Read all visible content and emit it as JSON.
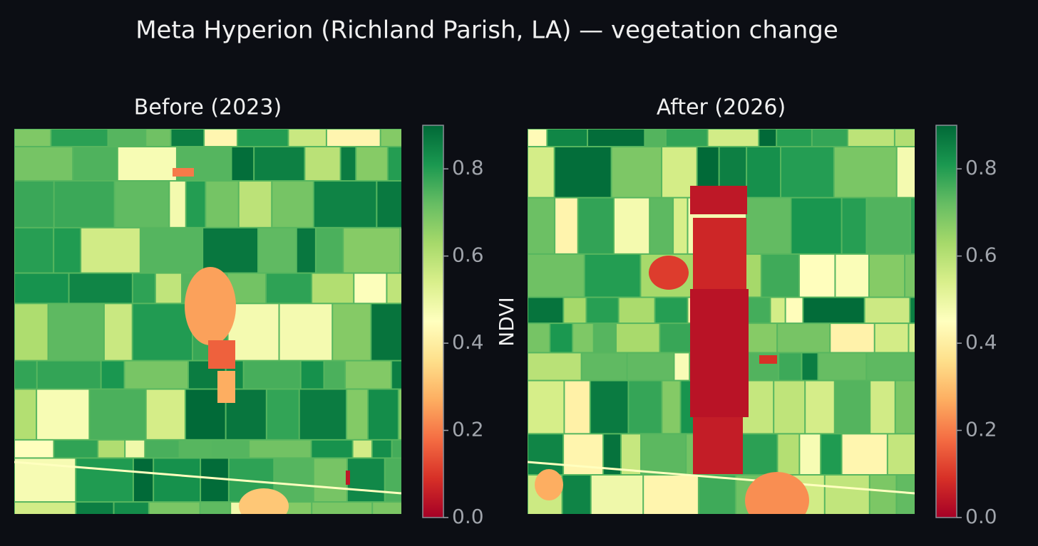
{
  "chart_data": [
    {
      "type": "heatmap",
      "title": "Before (2023)",
      "colormap": "RdYlGn",
      "clim": [
        0,
        0.9
      ],
      "cticks": [
        {
          "value": 0,
          "label": "0.0"
        },
        0.2,
        0.4,
        0.6,
        0.8
      ],
      "clabel": "NDVI"
    },
    {
      "type": "heatmap",
      "title": "After (2026)",
      "colormap": "RdYlGn",
      "clim": [
        0,
        0.9
      ],
      "cticks": [
        {
          "value": 0,
          "label": "0.0"
        },
        0.2,
        0.4,
        0.6,
        0.8
      ]
    }
  ],
  "title": "Meta Hyperion (Richland Parish, LA) — vegetation change"
}
